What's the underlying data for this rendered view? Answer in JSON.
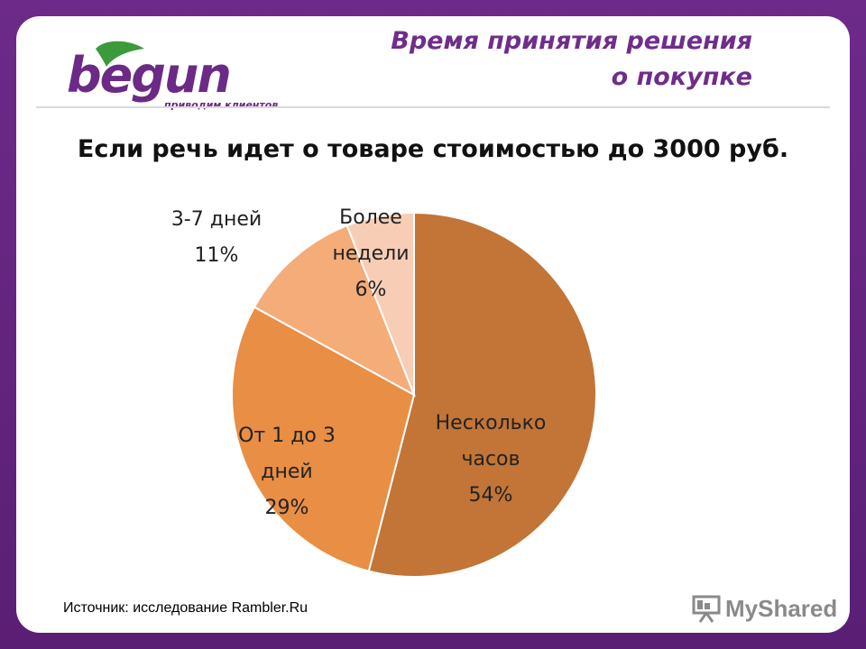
{
  "header": {
    "title_line1": "Время принятия решения",
    "title_line2": "о покупке"
  },
  "logo": {
    "word": "begun",
    "tagline": "приводим клиентов"
  },
  "subtitle": "Если речь идет о товаре стоимостью до 3000 руб.",
  "source": "Источник: исследование Rambler.Ru",
  "watermark": "MyShared",
  "colors": {
    "frame": "#6c2a86",
    "accent": "#6f2d8b",
    "slice_1": "#c27536",
    "slice_2": "#e88e45",
    "slice_3": "#f4ac79",
    "slice_4": "#f8cdb6"
  },
  "chart_data": {
    "type": "pie",
    "slices": [
      {
        "label_lines": [
          "Несколько",
          "часов"
        ],
        "value": 54,
        "value_label": "54%"
      },
      {
        "label_lines": [
          "От 1 до 3",
          "дней"
        ],
        "value": 29,
        "value_label": "29%"
      },
      {
        "label_lines": [
          "3-7 дней"
        ],
        "value": 11,
        "value_label": "11%"
      },
      {
        "label_lines": [
          "Более",
          "недели"
        ],
        "value": 6,
        "value_label": "6%"
      }
    ],
    "start": "12 o'clock",
    "direction": "clockwise"
  }
}
